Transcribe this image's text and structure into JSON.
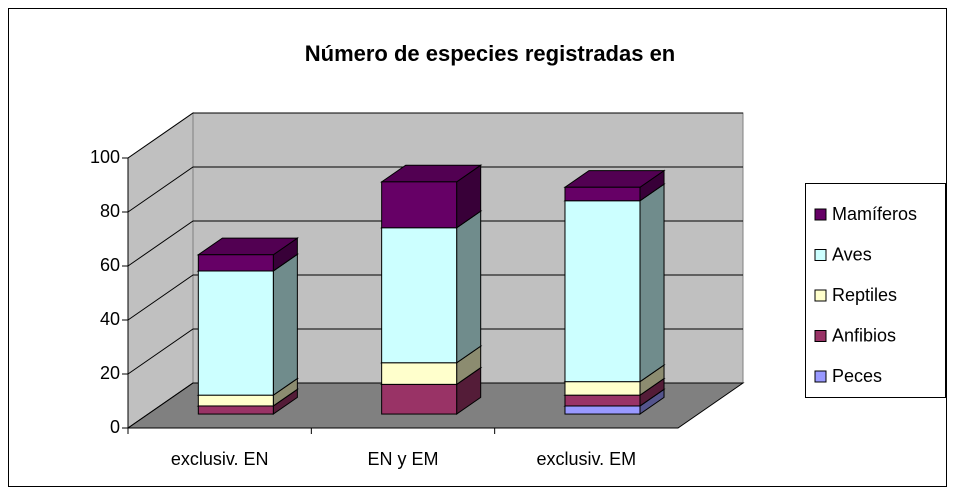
{
  "chart_data": {
    "type": "bar3d_stacked",
    "title": "Número de especies registradas en",
    "categories": [
      "exclusiv. EN",
      "EN y EM",
      "exclusiv. EM"
    ],
    "series": [
      {
        "name": "Peces",
        "color": "#9999ff",
        "values": [
          0,
          0,
          3
        ]
      },
      {
        "name": "Anfibios",
        "color": "#993366",
        "values": [
          3,
          11,
          4
        ]
      },
      {
        "name": "Reptiles",
        "color": "#ffffcc",
        "values": [
          4,
          8,
          5
        ]
      },
      {
        "name": "Aves",
        "color": "#ccffff",
        "values": [
          46,
          50,
          67
        ]
      },
      {
        "name": "Mamíferos",
        "color": "#660066",
        "values": [
          6,
          17,
          5
        ]
      }
    ],
    "ylim": [
      0,
      100
    ],
    "yticks": [
      0,
      20,
      40,
      60,
      80,
      100
    ],
    "grid": true,
    "legend": "right"
  }
}
